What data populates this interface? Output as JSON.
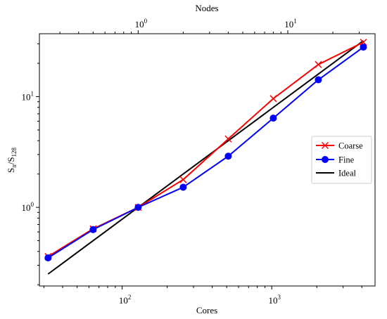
{
  "chart_data": {
    "type": "line",
    "xlabel": "Cores",
    "x2label": "Nodes",
    "ylabel": {
      "base": "S",
      "sub1": "n",
      "sep": "/S",
      "sub2": "128"
    },
    "xscale": "log",
    "yscale": "log",
    "xlim": [
      28,
      4900
    ],
    "ylim": [
      0.195,
      37
    ],
    "x2lim": [
      0.21875,
      38.28
    ],
    "grid": false,
    "legend_position": "center-right",
    "x_ticks": [
      {
        "value": 100,
        "base": "10",
        "exp": "2"
      },
      {
        "value": 1000,
        "base": "10",
        "exp": "3"
      }
    ],
    "x2_ticks": [
      {
        "value": 1,
        "base": "10",
        "exp": "0"
      },
      {
        "value": 10,
        "base": "10",
        "exp": "1"
      }
    ],
    "y_ticks": [
      {
        "value": 1,
        "base": "10",
        "exp": "0"
      },
      {
        "value": 10,
        "base": "10",
        "exp": "1"
      }
    ],
    "series": [
      {
        "name": "Coarse",
        "color": "#ff0000",
        "marker": "x",
        "x": [
          32,
          64,
          128,
          256,
          512,
          1024,
          2048,
          4096
        ],
        "y": [
          0.36,
          0.64,
          1.0,
          1.78,
          4.15,
          9.6,
          19.5,
          31.0
        ]
      },
      {
        "name": "Fine",
        "color": "#0000ff",
        "marker": "circle",
        "x": [
          32,
          64,
          128,
          256,
          512,
          1024,
          2048,
          4096
        ],
        "y": [
          0.35,
          0.63,
          1.0,
          1.52,
          2.9,
          6.4,
          14.2,
          28.0
        ]
      },
      {
        "name": "Ideal",
        "color": "#000000",
        "marker": "none",
        "x": [
          32,
          4096
        ],
        "y": [
          0.25,
          32
        ]
      }
    ]
  }
}
